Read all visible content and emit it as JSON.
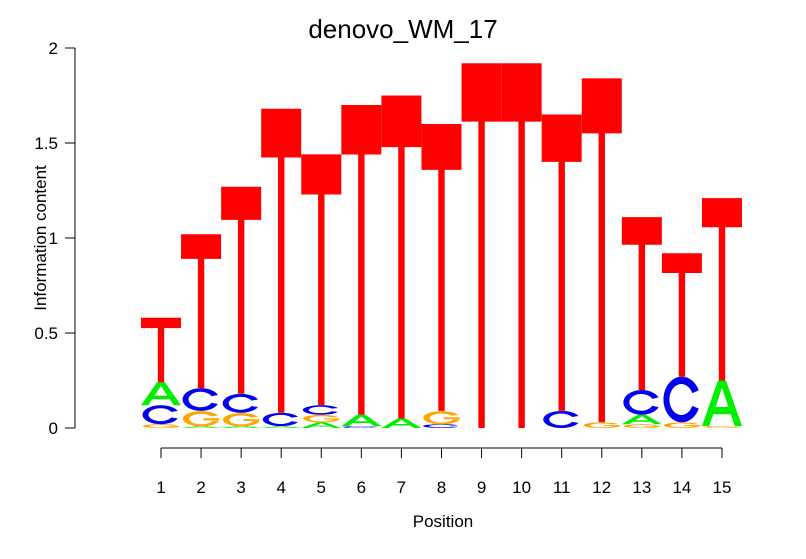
{
  "chart_data": {
    "type": "sequence-logo",
    "title": "denovo_WM_17",
    "xlabel": "Position",
    "ylabel": "Information content",
    "ylim": [
      0,
      2
    ],
    "yticks": [
      "0",
      "0.5",
      "1",
      "1.5",
      "2"
    ],
    "yticks_values": [
      0,
      0.5,
      1,
      1.5,
      2
    ],
    "categories": [
      "1",
      "2",
      "3",
      "4",
      "5",
      "6",
      "7",
      "8",
      "9",
      "10",
      "11",
      "12",
      "13",
      "14",
      "15"
    ],
    "colors": {
      "A": "#00ee00",
      "C": "#0000ee",
      "G": "#ffa500",
      "T": "#ff0000"
    },
    "stacks": [
      [
        [
          "G",
          0.02
        ],
        [
          "C",
          0.1
        ],
        [
          "A",
          0.12
        ],
        [
          "T",
          0.34
        ]
      ],
      [
        [
          "A",
          0.01
        ],
        [
          "G",
          0.08
        ],
        [
          "C",
          0.12
        ],
        [
          "T",
          0.81
        ]
      ],
      [
        [
          "A",
          0.01
        ],
        [
          "G",
          0.07
        ],
        [
          "C",
          0.1
        ],
        [
          "T",
          1.09
        ]
      ],
      [
        [
          "A",
          0.01
        ],
        [
          "C",
          0.07
        ],
        [
          "T",
          1.6
        ]
      ],
      [
        [
          "A",
          0.03
        ],
        [
          "G",
          0.04
        ],
        [
          "C",
          0.05
        ],
        [
          "T",
          1.32
        ]
      ],
      [
        [
          "C",
          0.01
        ],
        [
          "A",
          0.06
        ],
        [
          "T",
          1.63
        ]
      ],
      [
        [
          "A",
          0.05
        ],
        [
          "T",
          1.7
        ]
      ],
      [
        [
          "C",
          0.02
        ],
        [
          "G",
          0.07
        ],
        [
          "T",
          1.51
        ]
      ],
      [
        [
          "T",
          1.92
        ]
      ],
      [
        [
          "T",
          1.92
        ]
      ],
      [
        [
          "C",
          0.09
        ],
        [
          "T",
          1.56
        ]
      ],
      [
        [
          "G",
          0.03
        ],
        [
          "T",
          1.81
        ]
      ],
      [
        [
          "G",
          0.02
        ],
        [
          "A",
          0.05
        ],
        [
          "C",
          0.13
        ],
        [
          "T",
          0.91
        ]
      ],
      [
        [
          "G",
          0.03
        ],
        [
          "C",
          0.24
        ],
        [
          "T",
          0.65
        ]
      ],
      [
        [
          "G",
          0.01
        ],
        [
          "A",
          0.24
        ],
        [
          "T",
          0.96
        ]
      ]
    ]
  }
}
